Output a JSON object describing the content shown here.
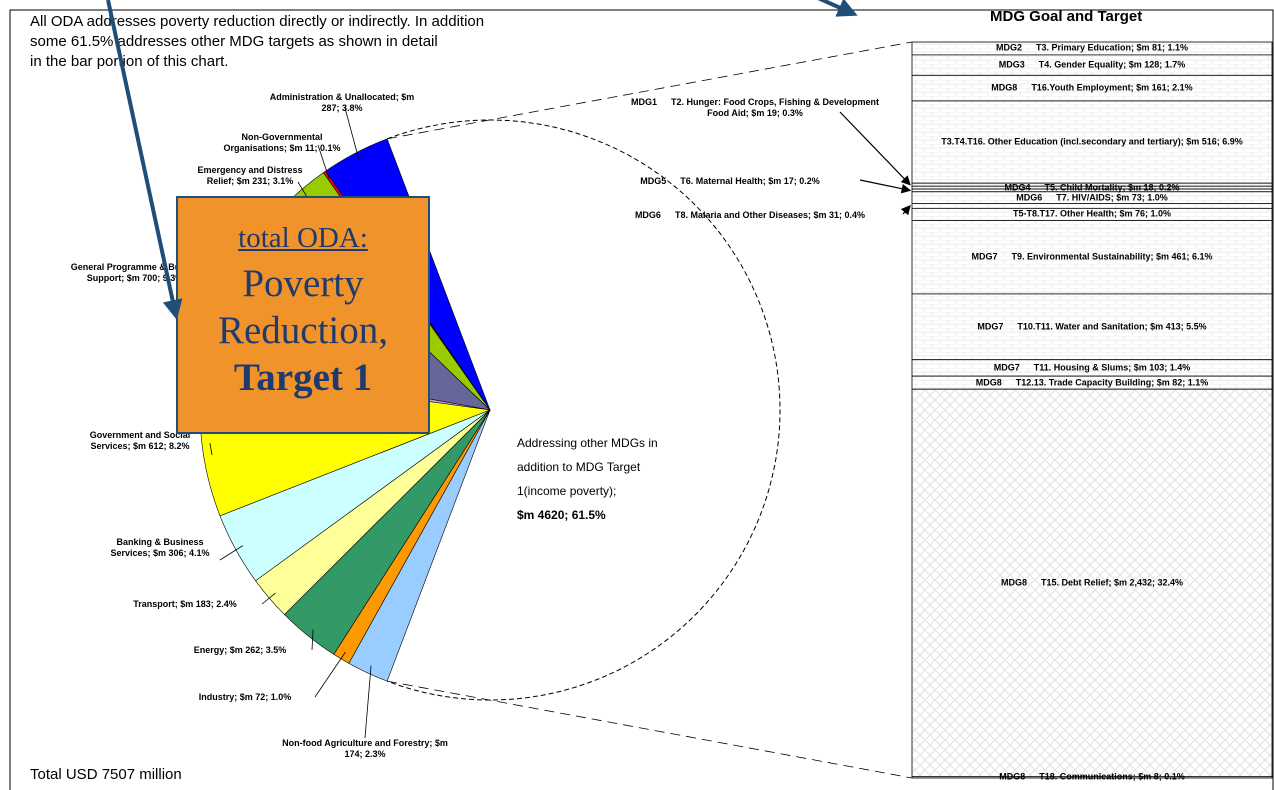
{
  "intro": [
    "All ODA addresses poverty reduction directly or indirectly.  In addition",
    "some 61.5% addresses other MDG targets as shown in detail",
    "in the bar portion of this chart."
  ],
  "footer": "Total USD 7507 million",
  "callout": {
    "line1": "total ODA:",
    "line2": "Poverty",
    "line3": "Reduction,",
    "line4": "Target 1"
  },
  "chart_data": {
    "type": "pie",
    "labels": [
      "Administration & Unallocated; $m 287; 3.8%",
      "Non-Governmental Organisations; $m 11; 0.1%",
      "Emergency and Distress Relief; $m 231; 3.1%",
      "General Programme & Budget Support; $m 700; 9.3%",
      null,
      "Government and Social Services; $m 612; 8.2%",
      "Banking & Business Services; $m 306; 4.1%",
      "Transport; $m 183; 2.4%",
      "Energy; $m 262; 3.5%",
      "Industry; $m 72; 1.0%",
      "Non-food Agriculture and Forestry; $m 174; 2.3%"
    ],
    "values": [
      287,
      11,
      231,
      700,
      49,
      612,
      306,
      183,
      262,
      72,
      174
    ],
    "colors": [
      "#0000ff",
      "#ff0000",
      "#99cc00",
      "#666699",
      "#cc99ff",
      "#ffff00",
      "#ccffff",
      "#ffff99",
      "#339966",
      "#ff9900",
      "#99ccff"
    ],
    "remainder": {
      "label": "Addressing other MDGs in addition to MDG Target 1(income poverty);",
      "value_label": "$m 4620; 61.5%",
      "value": 4620
    },
    "bar": {
      "title": "MDG Goal and Target",
      "goals": [
        "MDG2",
        "MDG3",
        "MDG8",
        null,
        "MDG1",
        "MDG4",
        "MDG5",
        "MDG6",
        "MDG6",
        null,
        "MDG7",
        "MDG7",
        "MDG7",
        "MDG8",
        "MDG8",
        "MDG8"
      ],
      "labels": [
        "T3. Primary Education; $m 81; 1.1%",
        "T4. Gender Equality; $m 128; 1.7%",
        "T16.Youth Employment; $m 161; 2.1%",
        "T3.T4.T16. Other Education (incl.secondary and tertiary); $m 516; 6.9%",
        "T2. Hunger: Food Crops, Fishing & Development Food Aid; $m 19; 0.3%",
        "T5. Child Mortality; $m 18; 0.2%",
        "T6. Maternal Health; $m 17; 0.2%",
        "T7. HIV/AIDS; $m 73; 1.0%",
        "T8. Malaria and Other Diseases; $m 31; 0.4%",
        "T5-T8.T17. Other Health; $m 76; 1.0%",
        "T9. Environmental Sustainability; $m 461; 6.1%",
        "T10.T11. Water and Sanitation; $m 413; 5.5%",
        "T11. Housing & Slums; $m 103; 1.4%",
        "T12.13. Trade Capacity Building; $m 82; 1.1%",
        "T15. Debt Relief; $m 2,432; 32.4%",
        "T18. Communications; $m 8; 0.1%"
      ],
      "values": [
        81,
        128,
        161,
        516,
        19,
        18,
        17,
        73,
        31,
        76,
        461,
        413,
        103,
        82,
        2432,
        8
      ],
      "fills": [
        "brick",
        "brick",
        "brick",
        "brick",
        "brick",
        "brick",
        "brick",
        "brick",
        "brick",
        "brick",
        "brick",
        "brick",
        "brick",
        "brick",
        "diamond",
        "brick"
      ]
    }
  }
}
